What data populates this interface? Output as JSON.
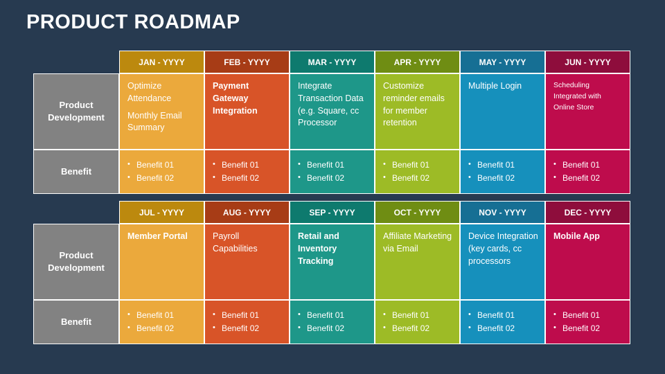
{
  "title": "PRODUCT ROADMAP",
  "colors": {
    "page_background": "#273A50",
    "title_color": "#FFFFFF",
    "cell_border": "#FFFFFF",
    "row_label_background": "#828282",
    "palette": {
      "gold": {
        "header": "#BC890E",
        "body": "#EBA93C"
      },
      "rust": {
        "header": "#A73C16",
        "body": "#D85428"
      },
      "teal": {
        "header": "#0E7A6E",
        "body": "#1E9789"
      },
      "olive": {
        "header": "#6F8D13",
        "body": "#9DBB26"
      },
      "blue": {
        "header": "#166F94",
        "body": "#1690BC"
      },
      "crimson": {
        "header": "#8E0D3C",
        "body": "#BE0C4C"
      }
    }
  },
  "tables": [
    {
      "row_labels": {
        "development": "Product Development",
        "benefit": "Benefit"
      },
      "columns": [
        {
          "month": "JAN - YYYY",
          "dev": [
            "Optimize Attendance",
            "Monthly Email Summary"
          ],
          "benefits": [
            "Benefit 01",
            "Benefit 02"
          ],
          "header_style": "background:#BC890E",
          "body_style": "background:#EBA93C"
        },
        {
          "month": "FEB - YYYY",
          "dev": [
            "Payment Gateway Integration"
          ],
          "benefits": [
            "Benefit 01",
            "Benefit 02"
          ],
          "header_style": "background:#A73C16",
          "body_style": "background:#D85428"
        },
        {
          "month": "MAR - YYYY",
          "dev": [
            "Integrate Transaction Data (e.g. Square, cc Processor"
          ],
          "benefits": [
            "Benefit 01",
            "Benefit 02"
          ],
          "header_style": "background:#0E7A6E",
          "body_style": "background:#1E9789"
        },
        {
          "month": "APR - YYYY",
          "dev": [
            "Customize reminder emails for member retention"
          ],
          "benefits": [
            "Benefit 01",
            "Benefit 02"
          ],
          "header_style": "background:#6F8D13",
          "body_style": "background:#9DBB26"
        },
        {
          "month": "MAY - YYYY",
          "dev": [
            "Multiple Login"
          ],
          "benefits": [
            "Benefit 01",
            "Benefit 02"
          ],
          "header_style": "background:#166F94",
          "body_style": "background:#1690BC"
        },
        {
          "month": "JUN - YYYY",
          "dev": [
            "Scheduling Integrated with Online Store"
          ],
          "benefits": [
            "Benefit 01",
            "Benefit 02"
          ],
          "header_style": "background:#8E0D3C",
          "body_style": "background:#BE0C4C"
        }
      ]
    },
    {
      "row_labels": {
        "development": "Product Development",
        "benefit": "Benefit"
      },
      "columns": [
        {
          "month": "JUL - YYYY",
          "dev": [
            "Member Portal"
          ],
          "benefits": [
            "Benefit 01",
            "Benefit 02"
          ],
          "header_style": "background:#BC890E",
          "body_style": "background:#EBA93C"
        },
        {
          "month": "AUG - YYYY",
          "dev": [
            "Payroll Capabilities"
          ],
          "benefits": [
            "Benefit 01",
            "Benefit 02"
          ],
          "header_style": "background:#A73C16",
          "body_style": "background:#D85428"
        },
        {
          "month": "SEP - YYYY",
          "dev": [
            "Retail and Inventory Tracking"
          ],
          "benefits": [
            "Benefit 01",
            "Benefit 02"
          ],
          "header_style": "background:#0E7A6E",
          "body_style": "background:#1E9789"
        },
        {
          "month": "OCT - YYYY",
          "dev": [
            "Affiliate Marketing via Email"
          ],
          "benefits": [
            "Benefit 01",
            "Benefit 02"
          ],
          "header_style": "background:#6F8D13",
          "body_style": "background:#9DBB26"
        },
        {
          "month": "NOV - YYYY",
          "dev": [
            "Device Integration (key cards, cc processors"
          ],
          "benefits": [
            "Benefit 01",
            "Benefit 02"
          ],
          "header_style": "background:#166F94",
          "body_style": "background:#1690BC"
        },
        {
          "month": "DEC - YYYY",
          "dev": [
            "Mobile App"
          ],
          "benefits": [
            "Benefit 01",
            "Benefit 02"
          ],
          "header_style": "background:#8E0D3C",
          "body_style": "background:#BE0C4C"
        }
      ]
    }
  ]
}
